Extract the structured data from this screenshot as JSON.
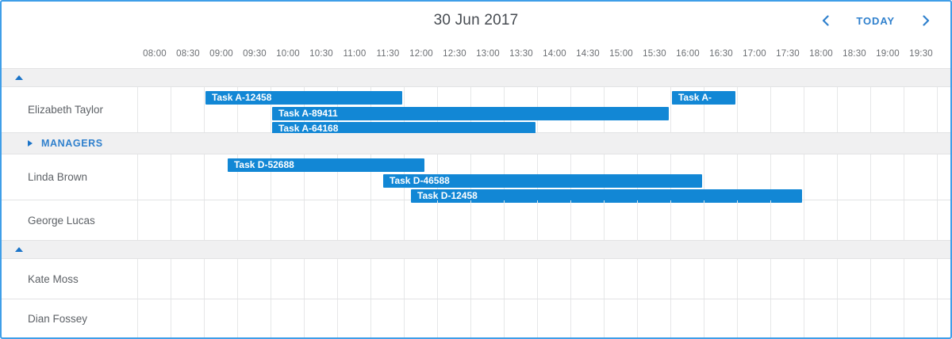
{
  "toolbar": {
    "title": "30 Jun 2017",
    "today_label": "TODAY"
  },
  "timeline": {
    "start": "08:00",
    "end": "20:00",
    "slot_minutes": 30,
    "labels": [
      "08:00",
      "08:30",
      "09:00",
      "09:30",
      "10:00",
      "10:30",
      "11:00",
      "11:30",
      "12:00",
      "12:30",
      "13:00",
      "13:30",
      "14:00",
      "14:30",
      "15:00",
      "15:30",
      "16:00",
      "16:30",
      "17:00",
      "17:30",
      "18:00",
      "18:30",
      "19:00",
      "19:30"
    ]
  },
  "colors": {
    "accent": "#2f80cd",
    "task_bar": "#1287d5",
    "group_row_bg": "#f0f0f1",
    "grid_line": "#e6e7e8"
  },
  "rows": [
    {
      "type": "group-header",
      "state": "expanded",
      "label": ""
    },
    {
      "type": "resource",
      "name": "Elizabeth Taylor",
      "tasks": [
        {
          "label": "Task A-12458",
          "start": "09:00",
          "end": "12:00",
          "line": 0
        },
        {
          "label": "Task A-",
          "start": "16:00",
          "end": "17:00",
          "line": 0
        },
        {
          "label": "Task A-89411",
          "start": "10:00",
          "end": "16:00",
          "line": 1
        },
        {
          "label": "Task A-64168",
          "start": "10:00",
          "end": "14:00",
          "line": 2
        }
      ]
    },
    {
      "type": "group-header",
      "state": "collapsed",
      "label": "MANAGERS"
    },
    {
      "type": "resource",
      "name": "Linda Brown",
      "tasks": [
        {
          "label": "Task D-52688",
          "start": "09:20",
          "end": "12:20",
          "line": 0
        },
        {
          "label": "Task D-46588",
          "start": "11:40",
          "end": "16:30",
          "line": 1
        },
        {
          "label": "Task D-12458",
          "start": "12:05",
          "end": "18:00",
          "line": 2
        }
      ]
    },
    {
      "type": "resource",
      "name": "George Lucas",
      "tasks": []
    },
    {
      "type": "group-header",
      "state": "expanded",
      "label": ""
    },
    {
      "type": "resource",
      "name": "Kate Moss",
      "tasks": []
    },
    {
      "type": "resource",
      "name": "Dian Fossey",
      "tasks": []
    }
  ]
}
